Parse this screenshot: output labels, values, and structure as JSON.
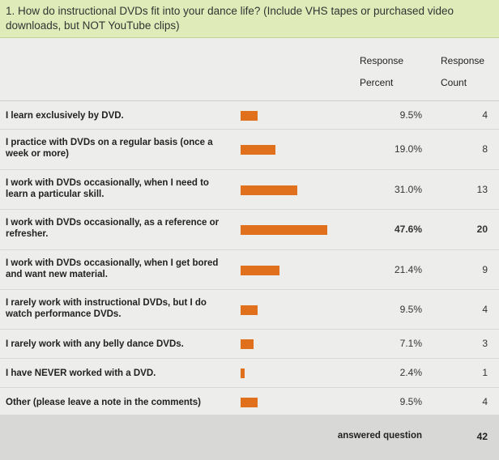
{
  "question": {
    "text": "1. How do instructional DVDs fit into your dance life? (Include VHS tapes or purchased video downloads, but NOT YouTube clips)"
  },
  "headers": {
    "percent_line1": "Response",
    "percent_line2": "Percent",
    "count_line1": "Response",
    "count_line2": "Count"
  },
  "footer": {
    "answered_label": "answered question",
    "answered_count": "42"
  },
  "colors": {
    "bar": "#e0701c",
    "question_bg": "#dfecb9",
    "table_bg": "#ededeb"
  },
  "chart_data": {
    "type": "bar",
    "orientation": "horizontal",
    "rows": [
      {
        "label": "I learn exclusively by DVD.",
        "percent": 9.5,
        "percent_text": "9.5%",
        "count": "4"
      },
      {
        "label": "I practice with DVDs on a regular basis (once a week or more)",
        "percent": 19.0,
        "percent_text": "19.0%",
        "count": "8"
      },
      {
        "label": "I work with DVDs occasionally, when I need to learn a particular skill.",
        "percent": 31.0,
        "percent_text": "31.0%",
        "count": "13"
      },
      {
        "label": "I work with DVDs occasionally, as a reference or refresher.",
        "percent": 47.6,
        "percent_text": "47.6%",
        "count": "20",
        "bold": true
      },
      {
        "label": "I work with DVDs occasionally, when I get bored and want new material.",
        "percent": 21.4,
        "percent_text": "21.4%",
        "count": "9"
      },
      {
        "label": "I rarely work with instructional DVDs, but I do watch performance DVDs.",
        "percent": 9.5,
        "percent_text": "9.5%",
        "count": "4"
      },
      {
        "label": "I rarely work with any belly dance DVDs.",
        "percent": 7.1,
        "percent_text": "7.1%",
        "count": "3"
      },
      {
        "label": "I have NEVER worked with a DVD.",
        "percent": 2.4,
        "percent_text": "2.4%",
        "count": "1"
      },
      {
        "label": "Other (please leave a note in the comments)",
        "percent": 9.5,
        "percent_text": "9.5%",
        "count": "4"
      }
    ]
  }
}
